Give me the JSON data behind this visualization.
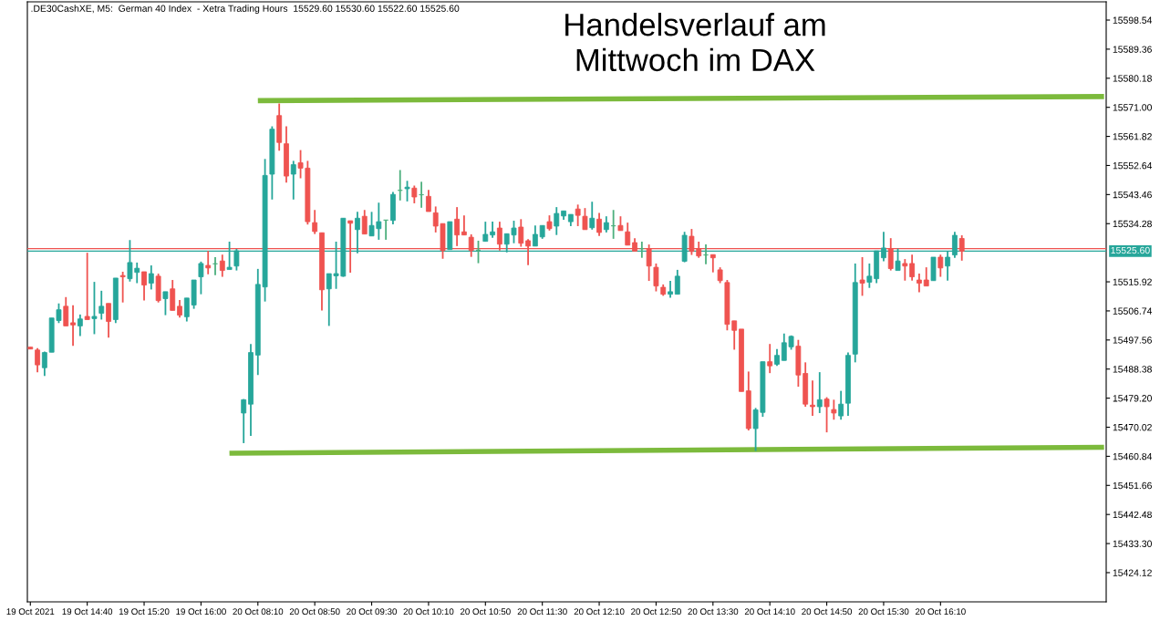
{
  "chart_data": {
    "type": "candlestick",
    "title": "Handelsverlauf am\nMittwoch im DAX",
    "subtitle": ".DE30CashXE, M5:  German 40 Index  - Xetra Trading Hours  15529.60 15530.60 15522.60 15525.60",
    "categories": [
      "19 Oct 2021",
      null,
      null,
      null,
      null,
      null,
      null,
      null,
      "19 Oct 14:40",
      null,
      null,
      null,
      null,
      null,
      null,
      null,
      "19 Oct 15:20",
      null,
      null,
      null,
      null,
      null,
      null,
      null,
      "19 Oct 16:00",
      null,
      null,
      null,
      null,
      null,
      null,
      null,
      "20 Oct 08:10",
      null,
      null,
      null,
      null,
      null,
      null,
      null,
      "20 Oct 08:50",
      null,
      null,
      null,
      null,
      null,
      null,
      null,
      "20 Oct 09:30",
      null,
      null,
      null,
      null,
      null,
      null,
      null,
      "20 Oct 10:10",
      null,
      null,
      null,
      null,
      null,
      null,
      null,
      "20 Oct 10:50",
      null,
      null,
      null,
      null,
      null,
      null,
      null,
      "20 Oct 11:30",
      null,
      null,
      null,
      null,
      null,
      null,
      null,
      "20 Oct 12:10",
      null,
      null,
      null,
      null,
      null,
      null,
      null,
      "20 Oct 12:50",
      null,
      null,
      null,
      null,
      null,
      null,
      null,
      "20 Oct 13:30",
      null,
      null,
      null,
      null,
      null,
      null,
      null,
      "20 Oct 14:10",
      null,
      null,
      null,
      null,
      null,
      null,
      null,
      "20 Oct 14:50",
      null,
      null,
      null,
      null,
      null,
      null,
      null,
      "20 Oct 15:30",
      null,
      null,
      null,
      null,
      null,
      null,
      null,
      "20 Oct 16:10",
      null,
      null,
      null,
      null,
      null,
      null,
      null,
      null,
      null,
      null,
      null,
      null,
      null,
      null,
      null,
      null,
      null,
      null,
      null,
      null,
      null,
      null,
      null
    ],
    "ohlc": [
      [
        15495.3,
        15495.3,
        15494.7,
        15494.7
      ],
      [
        15494.4,
        15495.0,
        15487.4,
        15489.7
      ],
      [
        15488.8,
        15493.9,
        15486.2,
        15493.6
      ],
      [
        15493.7,
        15504.5,
        15493.7,
        15504.5
      ],
      [
        15503.7,
        15509.1,
        15502.9,
        15507.1
      ],
      [
        15508.2,
        15511.1,
        15502.0,
        15502.0
      ],
      [
        15503.0,
        15508.5,
        15495.7,
        15502.3
      ],
      [
        15502.0,
        15505.6,
        15498.8,
        15504.2
      ],
      [
        15505.0,
        15525.1,
        15504.0,
        15504.0
      ],
      [
        15504.3,
        15515.9,
        15499.4,
        15505.0
      ],
      [
        15506.0,
        15513.1,
        15504.0,
        15508.2
      ],
      [
        15509.1,
        15509.1,
        15498.3,
        15503.4
      ],
      [
        15504.0,
        15517.1,
        15502.9,
        15517.1
      ],
      [
        15517.9,
        15519.1,
        15509.4,
        15517.5
      ],
      [
        15516.9,
        15529.1,
        15516.0,
        15522.0
      ],
      [
        15518.9,
        15522.0,
        15515.5,
        15520.2
      ],
      [
        15519.1,
        15519.1,
        15510.0,
        15514.9
      ],
      [
        15515.5,
        15521.1,
        15513.5,
        15518.5
      ],
      [
        15517.7,
        15518.5,
        15509.4,
        15510.0
      ],
      [
        15510.6,
        15512.8,
        15505.4,
        15512.8
      ],
      [
        15513.7,
        15516.5,
        15506.9,
        15506.9
      ],
      [
        15508.2,
        15510.2,
        15504.6,
        15505.4
      ],
      [
        15504.9,
        15510.8,
        15503.4,
        15510.8
      ],
      [
        15508.6,
        15516.5,
        15507.4,
        15516.5
      ],
      [
        15517.5,
        15522.3,
        15512.0,
        15521.7
      ],
      [
        15521.1,
        15525.7,
        15518.3,
        15520.3
      ],
      [
        15521.6,
        15523.7,
        15518.0,
        15521.6
      ],
      [
        15522.5,
        15524.5,
        15517.5,
        15519.5
      ],
      [
        15519.8,
        15528.6,
        15519.8,
        15520.5
      ],
      [
        15520.9,
        15526.3,
        15519.5,
        15525.7
      ],
      [
        15474.5,
        15478.9,
        15465.0,
        15478.7
      ],
      [
        15477.3,
        15496.3,
        15467.3,
        15493.6
      ],
      [
        15492.8,
        15520.0,
        15486.5,
        15515.1
      ],
      [
        15514.3,
        15554.7,
        15509.7,
        15549.5
      ],
      [
        15549.9,
        15565.0,
        15541.9,
        15564.1
      ],
      [
        15568.4,
        15572.2,
        15557.3,
        15559.9
      ],
      [
        15559.5,
        15565.0,
        15547.2,
        15549.3
      ],
      [
        15549.9,
        15554.1,
        15541.9,
        15552.9
      ],
      [
        15553.5,
        15557.5,
        15548.6,
        15551.8
      ],
      [
        15551.8,
        15554.1,
        15534.0,
        15534.9
      ],
      [
        15534.6,
        15538.6,
        15531.0,
        15531.8
      ],
      [
        15531.4,
        15531.4,
        15506.9,
        15513.4
      ],
      [
        15513.7,
        15518.5,
        15502.0,
        15518.5
      ],
      [
        15517.8,
        15528.6,
        15513.7,
        15518.5
      ],
      [
        15517.7,
        15536.0,
        15517.5,
        15536.0
      ],
      [
        15535.2,
        15535.2,
        15518.8,
        15534.4
      ],
      [
        15532.4,
        15538.0,
        15524.9,
        15536.0
      ],
      [
        15536.6,
        15538.6,
        15531.0,
        15531.0
      ],
      [
        15530.4,
        15538.0,
        15530.4,
        15533.7
      ],
      [
        15532.7,
        15540.9,
        15529.2,
        15534.9
      ],
      [
        15535.4,
        15535.4,
        15529.2,
        15535.4
      ],
      [
        15535.3,
        15544.3,
        15534.1,
        15543.5
      ],
      [
        15544.8,
        15551.2,
        15541.6,
        15544.8
      ],
      [
        15545.3,
        15547.8,
        15541.3,
        15545.8
      ],
      [
        15545.5,
        15546.3,
        15540.7,
        15542.7
      ],
      [
        15543.4,
        15547.5,
        15539.3,
        15543.4
      ],
      [
        15542.9,
        15544.9,
        15538.1,
        15538.1
      ],
      [
        15537.7,
        15539.7,
        15531.5,
        15533.5
      ],
      [
        15534.3,
        15534.3,
        15523.2,
        15525.8
      ],
      [
        15526.1,
        15534.9,
        15526.1,
        15534.9
      ],
      [
        15535.7,
        15539.5,
        15527.2,
        15530.7
      ],
      [
        15531.7,
        15536.9,
        15530.7,
        15530.7
      ],
      [
        15530.0,
        15530.9,
        15523.8,
        15525.8
      ],
      [
        15525.9,
        15528.9,
        15521.8,
        15525.9
      ],
      [
        15528.7,
        15534.9,
        15528.7,
        15530.9
      ],
      [
        15530.7,
        15534.9,
        15529.8,
        15531.7
      ],
      [
        15532.9,
        15534.9,
        15525.8,
        15527.8
      ],
      [
        15527.8,
        15531.1,
        15525.2,
        15531.1
      ],
      [
        15530.7,
        15535.2,
        15528.1,
        15532.9
      ],
      [
        15533.2,
        15535.7,
        15527.0,
        15528.1
      ],
      [
        15528.9,
        15529.4,
        15521.2,
        15527.2
      ],
      [
        15527.2,
        15533.7,
        15527.2,
        15530.9
      ],
      [
        15530.1,
        15533.7,
        15529.5,
        15533.7
      ],
      [
        15534.9,
        15536.9,
        15532.1,
        15532.7
      ],
      [
        15533.5,
        15539.5,
        15530.7,
        15537.5
      ],
      [
        15536.7,
        15538.3,
        15535.5,
        15538.3
      ],
      [
        15534.9,
        15537.2,
        15533.5,
        15537.2
      ],
      [
        15538.9,
        15540.3,
        15533.5,
        15536.9
      ],
      [
        15536.6,
        15539.2,
        15532.4,
        15532.4
      ],
      [
        15533.0,
        15541.2,
        15532.4,
        15536.0
      ],
      [
        15535.7,
        15537.7,
        15530.4,
        15531.5
      ],
      [
        15532.4,
        15536.6,
        15531.5,
        15534.6
      ],
      [
        15533.6,
        15538.6,
        15529.5,
        15533.6
      ],
      [
        15533.7,
        15536.6,
        15532.1,
        15532.1
      ],
      [
        15531.7,
        15534.6,
        15527.5,
        15527.5
      ],
      [
        15528.3,
        15529.7,
        15525.6,
        15525.6
      ],
      [
        15526.4,
        15528.6,
        15523.5,
        15526.4
      ],
      [
        15526.4,
        15527.7,
        15516.2,
        15520.9
      ],
      [
        15520.5,
        15521.7,
        15512.9,
        15514.6
      ],
      [
        15514.2,
        15515.1,
        15511.5,
        15512.0
      ],
      [
        15512.0,
        15516.2,
        15510.9,
        15512.8
      ],
      [
        15512.0,
        15519.7,
        15512.0,
        15517.7
      ],
      [
        15522.4,
        15531.7,
        15522.1,
        15530.6
      ],
      [
        15530.3,
        15532.6,
        15524.4,
        15525.5
      ],
      [
        15526.4,
        15528.6,
        15523.5,
        15524.1
      ],
      [
        15524.4,
        15527.7,
        15521.5,
        15524.4
      ],
      [
        15524.5,
        15524.5,
        15518.9,
        15523.5
      ],
      [
        15519.7,
        15520.5,
        15515.5,
        15516.3
      ],
      [
        15515.7,
        15516.5,
        15500.6,
        15502.5
      ],
      [
        15503.6,
        15503.6,
        15494.5,
        15500.6
      ],
      [
        15501.0,
        15501.0,
        15481.3,
        15481.3
      ],
      [
        15481.5,
        15487.6,
        15469.0,
        15469.6
      ],
      [
        15469.6,
        15476.1,
        15462.5,
        15475.5
      ],
      [
        15474.7,
        15490.7,
        15473.3,
        15490.7
      ],
      [
        15490.7,
        15496.3,
        15487.1,
        15489.4
      ],
      [
        15489.9,
        15494.7,
        15489.4,
        15492.7
      ],
      [
        15491.1,
        15499.6,
        15491.1,
        15496.7
      ],
      [
        15495.4,
        15499.0,
        15494.5,
        15498.7
      ],
      [
        15495.6,
        15497.6,
        15482.8,
        15486.5
      ],
      [
        15487.0,
        15490.5,
        15476.5,
        15477.3
      ],
      [
        15477.0,
        15484.8,
        15473.6,
        15476.5
      ],
      [
        15476.5,
        15487.4,
        15474.5,
        15478.7
      ],
      [
        15478.9,
        15479.5,
        15468.4,
        15476.5
      ],
      [
        15475.6,
        15478.7,
        15472.4,
        15474.5
      ],
      [
        15473.6,
        15481.5,
        15472.4,
        15477.3
      ],
      [
        15477.6,
        15493.6,
        15473.6,
        15492.7
      ],
      [
        15493.1,
        15521.7,
        15490.5,
        15515.7
      ],
      [
        15516.5,
        15523.7,
        15511.5,
        15515.5
      ],
      [
        15515.8,
        15521.7,
        15514.0,
        15517.7
      ],
      [
        15516.9,
        15525.7,
        15515.5,
        15525.7
      ],
      [
        15523.5,
        15531.7,
        15522.4,
        15526.6
      ],
      [
        15526.4,
        15529.7,
        15519.5,
        15520.1
      ],
      [
        15519.5,
        15526.4,
        15519.5,
        15522.5
      ],
      [
        15521.7,
        15523.1,
        15516.3,
        15520.9
      ],
      [
        15521.7,
        15524.5,
        15516.3,
        15517.5
      ],
      [
        15516.5,
        15518.5,
        15512.6,
        15515.5
      ],
      [
        15516.5,
        15520.5,
        15514.6,
        15514.6
      ],
      [
        15516.3,
        15523.7,
        15516.3,
        15523.7
      ],
      [
        15523.7,
        15524.5,
        15517.5,
        15520.3
      ],
      [
        15520.9,
        15525.7,
        15516.3,
        15523.7
      ],
      [
        15524.4,
        15531.7,
        15523.5,
        15530.6
      ],
      [
        15529.6,
        15530.6,
        15522.6,
        15525.6
      ],
      null,
      null,
      null,
      null,
      null,
      null,
      null,
      null,
      null,
      null,
      null,
      null,
      null,
      null,
      null,
      null,
      null,
      null,
      null,
      null
    ],
    "colors": [
      "#ef5350",
      "#ef5350",
      "#26a69a",
      "#26a69a",
      "#26a69a",
      "#ef5350",
      "#ef5350",
      "#26a69a",
      "#ef5350",
      "#26a69a",
      "#26a69a",
      "#ef5350",
      "#26a69a",
      "#ef5350",
      "#26a69a",
      "#26a69a",
      "#ef5350",
      "#26a69a",
      "#ef5350",
      "#26a69a",
      "#ef5350",
      "#ef5350",
      "#26a69a",
      "#26a69a",
      "#26a69a",
      "#ef5350",
      "#4caf7d",
      "#ef5350",
      "#26a69a",
      "#26a69a",
      "#26a69a",
      "#26a69a",
      "#26a69a",
      "#26a69a",
      "#26a69a",
      "#ef5350",
      "#ef5350",
      "#26a69a",
      "#ef5350",
      "#ef5350",
      "#ef5350",
      "#ef5350",
      "#26a69a",
      "#26a69a",
      "#26a69a",
      "#ef5350",
      "#26a69a",
      "#ef5350",
      "#26a69a",
      "#26a69a",
      "#4caf7d",
      "#26a69a",
      "#4caf7d",
      "#26a69a",
      "#ef5350",
      "#4caf7d",
      "#ef5350",
      "#ef5350",
      "#ef5350",
      "#26a69a",
      "#ef5350",
      "#ef5350",
      "#ef5350",
      "#4caf7d",
      "#26a69a",
      "#26a69a",
      "#ef5350",
      "#26a69a",
      "#26a69a",
      "#ef5350",
      "#ef5350",
      "#26a69a",
      "#26a69a",
      "#ef5350",
      "#26a69a",
      "#26a69a",
      "#26a69a",
      "#ef5350",
      "#ef5350",
      "#26a69a",
      "#ef5350",
      "#26a69a",
      "#4caf7d",
      "#ef5350",
      "#ef5350",
      "#ef5350",
      "#4caf7d",
      "#ef5350",
      "#ef5350",
      "#ef5350",
      "#26a69a",
      "#26a69a",
      "#26a69a",
      "#ef5350",
      "#ef5350",
      "#4caf7d",
      "#ef5350",
      "#ef5350",
      "#ef5350",
      "#ef5350",
      "#ef5350",
      "#ef5350",
      "#26a69a",
      "#26a69a",
      "#ef5350",
      "#26a69a",
      "#26a69a",
      "#26a69a",
      "#ef5350",
      "#ef5350",
      "#ef5350",
      "#26a69a",
      "#ef5350",
      "#ef5350",
      "#26a69a",
      "#26a69a",
      "#26a69a",
      "#ef5350",
      "#26a69a",
      "#26a69a",
      "#26a69a",
      "#ef5350",
      "#26a69a",
      "#ef5350",
      "#ef5350",
      "#ef5350",
      "#ef5350",
      "#26a69a",
      "#ef5350",
      "#26a69a",
      "#26a69a",
      "#ef5350",
      null,
      null,
      null,
      null,
      null,
      null,
      null,
      null,
      null,
      null,
      null,
      null,
      null,
      null,
      null,
      null,
      null,
      null,
      null,
      null
    ],
    "series": [
      {
        "type": "line",
        "color": "#7cba3c",
        "values": [
          null,
          null,
          null,
          null,
          null,
          null,
          null,
          null,
          null,
          null,
          null,
          null,
          null,
          null,
          null,
          null,
          null,
          null,
          null,
          null,
          null,
          null,
          null,
          null,
          null,
          null,
          null,
          null,
          null,
          null,
          null,
          null,
          15573.1,
          null,
          null,
          null,
          null,
          null,
          null,
          null,
          null,
          null,
          null,
          null,
          null,
          null,
          null,
          null,
          null,
          null,
          null,
          null,
          null,
          null,
          null,
          null,
          null,
          null,
          null,
          null,
          null,
          null,
          null,
          null,
          null,
          null,
          null,
          null,
          null,
          null,
          null,
          null,
          null,
          null,
          null,
          null,
          null,
          null,
          null,
          null,
          null,
          null,
          null,
          null,
          null,
          null,
          null,
          null,
          null,
          null,
          null,
          null,
          null,
          null,
          null,
          null,
          null,
          null,
          null,
          null,
          null,
          null,
          null,
          null,
          null,
          null,
          null,
          null,
          null,
          null,
          null,
          null,
          null,
          null,
          null,
          null,
          null,
          null,
          null,
          null,
          null,
          null,
          null,
          null,
          null,
          null,
          null,
          null,
          null,
          null,
          null,
          null,
          null,
          null,
          null,
          null,
          null,
          null,
          null,
          null,
          null,
          null,
          null,
          null,
          null,
          null,
          null,
          null,
          null,
          null,
          null,
          15574.4
        ]
      },
      {
        "type": "line",
        "color": "#7cba3c",
        "values": [
          null,
          null,
          null,
          null,
          null,
          null,
          null,
          null,
          null,
          null,
          null,
          null,
          null,
          null,
          null,
          null,
          null,
          null,
          null,
          null,
          null,
          null,
          null,
          null,
          null,
          null,
          null,
          null,
          15461.8,
          null,
          null,
          null,
          null,
          null,
          null,
          null,
          null,
          null,
          null,
          null,
          null,
          null,
          null,
          null,
          null,
          null,
          null,
          null,
          null,
          null,
          null,
          null,
          null,
          null,
          null,
          null,
          null,
          null,
          null,
          null,
          null,
          null,
          null,
          null,
          null,
          null,
          null,
          null,
          null,
          null,
          null,
          null,
          null,
          null,
          null,
          null,
          null,
          null,
          null,
          null,
          null,
          null,
          null,
          null,
          null,
          null,
          null,
          null,
          null,
          null,
          null,
          null,
          null,
          null,
          null,
          null,
          null,
          null,
          null,
          null,
          null,
          null,
          null,
          null,
          null,
          null,
          null,
          null,
          null,
          null,
          null,
          null,
          null,
          null,
          null,
          null,
          null,
          null,
          null,
          null,
          null,
          null,
          null,
          null,
          null,
          null,
          null,
          null,
          null,
          null,
          null,
          null,
          null,
          null,
          null,
          null,
          null,
          null,
          null,
          null,
          null,
          null,
          null,
          null,
          null,
          null,
          null,
          null,
          null,
          null,
          null,
          15463.7
        ]
      }
    ],
    "ref_lines": [
      {
        "axis": "y",
        "value": 15526.4,
        "label": null,
        "color": "#ef5350"
      },
      {
        "axis": "y",
        "value": 15525.6,
        "label": "15525.60",
        "color": "#26a69a"
      }
    ],
    "ylim": [
      15414.9,
      15604.3
    ],
    "yticks": [
      15598.54,
      15589.36,
      15580.18,
      {
        "value": 15571,
        "label": "15571.00"
      },
      15561.82,
      15552.64,
      15543.46,
      15534.28,
      15515.92,
      15506.74,
      15497.56,
      15488.38,
      {
        "value": 15479.2,
        "label": "15479.20"
      },
      15470.02,
      15460.84,
      15451.66,
      15442.48,
      {
        "value": 15433.3,
        "label": "15433.30"
      },
      15424.12
    ],
    "grid": false,
    "legend": false
  }
}
